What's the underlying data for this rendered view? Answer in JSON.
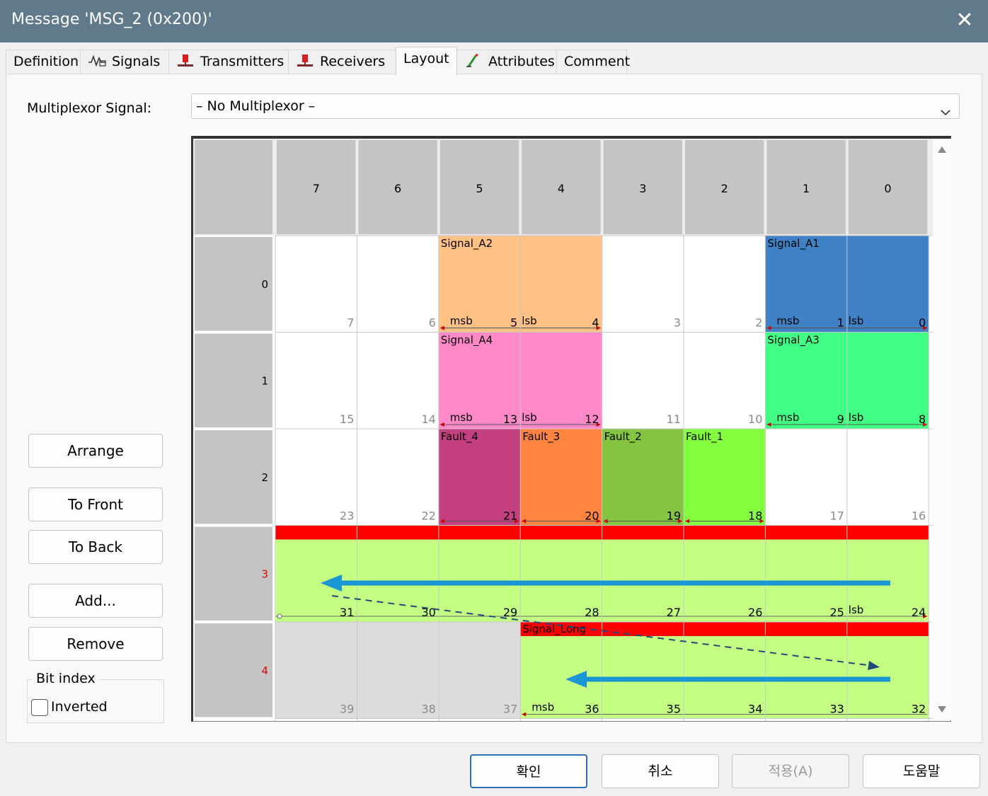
{
  "window": {
    "title": "Message 'MSG_2 (0x200)'",
    "close_icon": "close-icon"
  },
  "tabs": [
    {
      "label": "Definition",
      "icon": ""
    },
    {
      "label": "Signals",
      "icon": "signal-wave-icon"
    },
    {
      "label": "Transmitters",
      "icon": "node-red-icon"
    },
    {
      "label": "Receivers",
      "icon": "node-red-icon"
    },
    {
      "label": "Layout",
      "icon": "",
      "active": true
    },
    {
      "label": "Attributes",
      "icon": "attribute-pencil-icon"
    },
    {
      "label": "Comment",
      "icon": ""
    }
  ],
  "multiplexor": {
    "label": "Multiplexor Signal:",
    "value": "– No Multiplexor –"
  },
  "side_buttons": {
    "arrange": "Arrange",
    "to_front": "To Front",
    "to_back": "To Back",
    "add": "Add...",
    "remove": "Remove"
  },
  "bit_index": {
    "group_label": "Bit index",
    "inverted_label": "Inverted",
    "inverted_checked": false
  },
  "layout_grid": {
    "bit_headers": [
      "7",
      "6",
      "5",
      "4",
      "3",
      "2",
      "1",
      "0"
    ],
    "byte_rows": [
      {
        "label": "0",
        "highlight": false
      },
      {
        "label": "1",
        "highlight": false
      },
      {
        "label": "2",
        "highlight": false
      },
      {
        "label": "3",
        "highlight": true
      },
      {
        "label": "4",
        "highlight": true
      }
    ],
    "bit_numbers": [
      [
        "7",
        "6",
        "5",
        "4",
        "3",
        "2",
        "1",
        "0"
      ],
      [
        "15",
        "14",
        "13",
        "12",
        "11",
        "10",
        "9",
        "8"
      ],
      [
        "23",
        "22",
        "21",
        "20",
        "19",
        "18",
        "17",
        "16"
      ],
      [
        "31",
        "30",
        "29",
        "28",
        "27",
        "26",
        "25",
        "24"
      ],
      [
        "39",
        "38",
        "37",
        "36",
        "35",
        "34",
        "33",
        "32"
      ]
    ],
    "signals": [
      {
        "name": "Signal_A2",
        "row": 0,
        "from_col": 2,
        "to_col": 3,
        "color": "#ffc184",
        "msb": "msb",
        "lsb": "lsb"
      },
      {
        "name": "Signal_A1",
        "row": 0,
        "from_col": 6,
        "to_col": 7,
        "color": "#4080c4",
        "msb": "msb",
        "lsb": "lsb"
      },
      {
        "name": "Signal_A4",
        "row": 1,
        "from_col": 2,
        "to_col": 3,
        "color": "#ff88c8",
        "msb": "msb",
        "lsb": "lsb"
      },
      {
        "name": "Signal_A3",
        "row": 1,
        "from_col": 6,
        "to_col": 7,
        "color": "#40ff84",
        "msb": "msb",
        "lsb": "lsb"
      },
      {
        "name": "Fault_4",
        "row": 2,
        "from_col": 2,
        "to_col": 2,
        "color": "#c44080",
        "msb": "",
        "lsb": ""
      },
      {
        "name": "Fault_3",
        "row": 2,
        "from_col": 3,
        "to_col": 3,
        "color": "#ff8440",
        "msb": "",
        "lsb": ""
      },
      {
        "name": "Fault_2",
        "row": 2,
        "from_col": 4,
        "to_col": 4,
        "color": "#84c440",
        "msb": "",
        "lsb": ""
      },
      {
        "name": "Fault_1",
        "row": 2,
        "from_col": 5,
        "to_col": 5,
        "color": "#84ff40",
        "msb": "",
        "lsb": ""
      }
    ],
    "long_signal": {
      "name": "Signal_Long",
      "fill_color": "#c4ff84",
      "bar_color": "#ff0000",
      "msb": "msb",
      "lsb": "lsb"
    },
    "unused_cell_color": "#dcdcdc",
    "header_color": "#c4c4c4",
    "annotation_arrow_color": "#1a96d4",
    "annotation_dash_color": "#1f4a7a"
  },
  "footer": {
    "ok": "확인",
    "cancel": "취소",
    "apply": "적용(A)",
    "help": "도움말"
  }
}
